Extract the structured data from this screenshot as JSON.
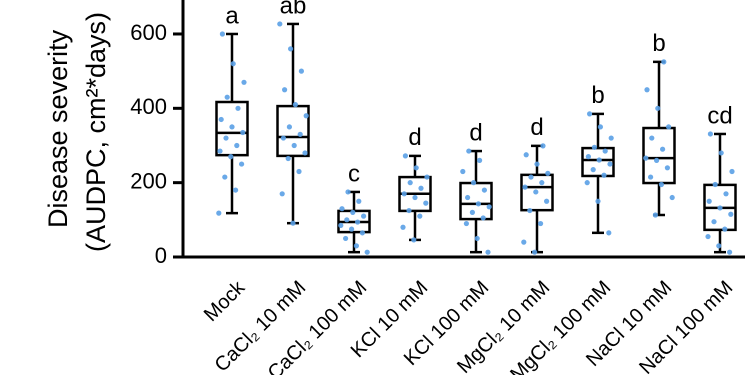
{
  "chart_data": {
    "type": "box",
    "y_label_lines": [
      "Disease severity",
      "(AUDPC, cm²*days)"
    ],
    "categories": [
      "Mock",
      "CaCl₂ 10 mM",
      "CaCl₂ 100 mM",
      "KCl 10 mM",
      "KCl 100 mM",
      "MgCl₂ 10 mM",
      "MgCl₂ 100 mM",
      "NaCl 10 mM",
      "NaCl 100 mM"
    ],
    "letters": [
      "a",
      "ab",
      "c",
      "d",
      "d",
      "d",
      "b",
      "b",
      "cd"
    ],
    "boxes": [
      {
        "min": 118,
        "q1": 274,
        "median": 334,
        "q3": 417,
        "max": 600
      },
      {
        "min": 91,
        "q1": 272,
        "median": 323,
        "q3": 406,
        "max": 627
      },
      {
        "min": 13,
        "q1": 67,
        "median": 94,
        "q3": 124,
        "max": 175
      },
      {
        "min": 46,
        "q1": 124,
        "median": 170,
        "q3": 215,
        "max": 272
      },
      {
        "min": 13,
        "q1": 102,
        "median": 143,
        "q3": 199,
        "max": 285
      },
      {
        "min": 13,
        "q1": 126,
        "median": 188,
        "q3": 221,
        "max": 299
      },
      {
        "min": 65,
        "q1": 218,
        "median": 261,
        "q3": 293,
        "max": 385
      },
      {
        "min": 113,
        "q1": 199,
        "median": 266,
        "q3": 347,
        "max": 525
      },
      {
        "min": 13,
        "q1": 73,
        "median": 132,
        "q3": 194,
        "max": 331
      }
    ],
    "points": [
      [
        118,
        180,
        215,
        250,
        270,
        285,
        300,
        320,
        335,
        350,
        370,
        400,
        430,
        470,
        520,
        600
      ],
      [
        91,
        170,
        230,
        265,
        280,
        300,
        320,
        330,
        350,
        380,
        410,
        450,
        500,
        560,
        627
      ],
      [
        13,
        30,
        50,
        65,
        75,
        85,
        94,
        100,
        110,
        120,
        130,
        150,
        175
      ],
      [
        46,
        80,
        110,
        125,
        145,
        160,
        170,
        185,
        200,
        215,
        240,
        272
      ],
      [
        13,
        50,
        90,
        105,
        120,
        135,
        143,
        160,
        180,
        200,
        230,
        260,
        285
      ],
      [
        13,
        40,
        90,
        125,
        150,
        175,
        188,
        200,
        215,
        225,
        250,
        275,
        299
      ],
      [
        65,
        150,
        200,
        220,
        235,
        250,
        261,
        270,
        285,
        295,
        320,
        350,
        385
      ],
      [
        113,
        160,
        195,
        215,
        240,
        260,
        266,
        290,
        320,
        350,
        400,
        450,
        525
      ],
      [
        13,
        30,
        55,
        75,
        95,
        115,
        132,
        150,
        170,
        195,
        230,
        280,
        331
      ]
    ],
    "point_color": "#5aa0e6",
    "ylim": [
      0,
      700
    ],
    "yticks": [
      0,
      200,
      400,
      600
    ]
  }
}
